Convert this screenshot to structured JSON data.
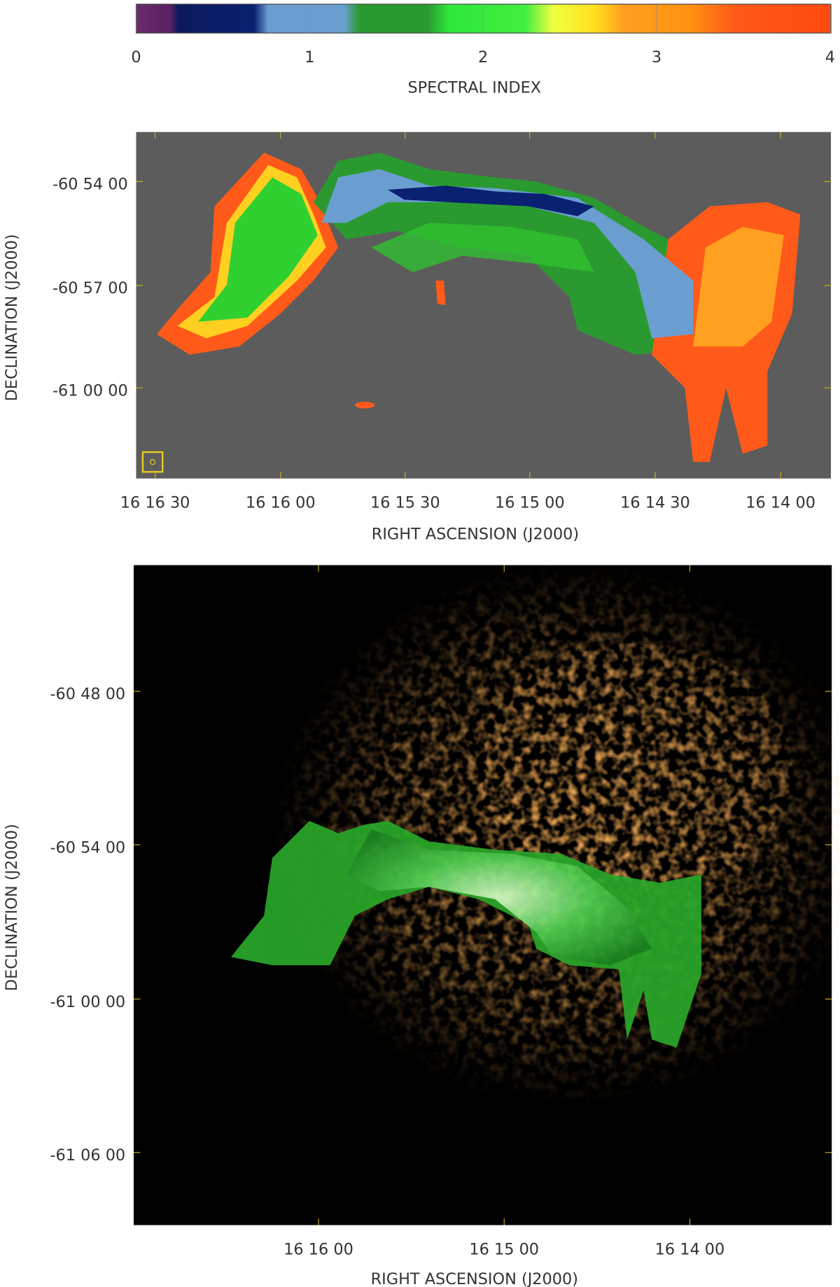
{
  "colorbar": {
    "label": "SPECTRAL INDEX",
    "lim": [
      0,
      4
    ],
    "ticks": [
      0,
      1,
      2,
      3,
      4
    ]
  },
  "panel_top": {
    "x_label": "RIGHT ASCENSION (J2000)",
    "y_label": "DECLINATION (J2000)",
    "x_ticks": [
      "16 16 30",
      "16 16 00",
      "16 15 30",
      "16 15 00",
      "16 14 30",
      "16 14 00"
    ],
    "y_ticks": [
      "-60 54 00",
      "-60 57 00",
      "-61 00 00"
    ]
  },
  "panel_bottom": {
    "x_label": "RIGHT ASCENSION (J2000)",
    "y_label": "DECLINATION (J2000)",
    "x_ticks": [
      "16 16 00",
      "16 15 00",
      "16 14 00"
    ],
    "y_ticks": [
      "-60 48 00",
      "-60 54 00",
      "-61 00 00",
      "-61 06 00"
    ]
  }
}
